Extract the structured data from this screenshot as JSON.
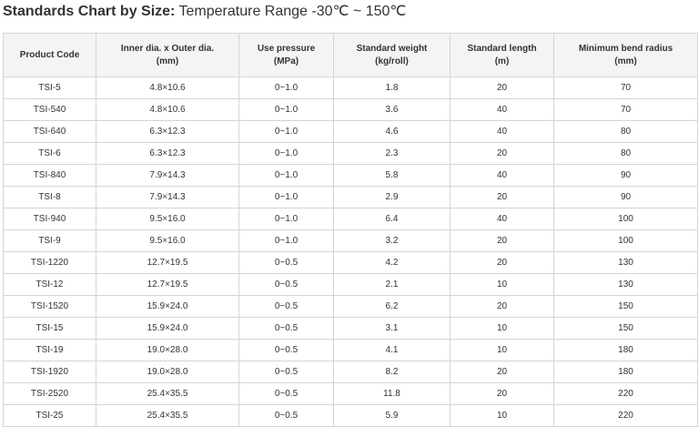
{
  "header": {
    "title_bold": "Standards Chart by Size:",
    "title_rest": "Temperature Range -30℃ ~ 150℃"
  },
  "table": {
    "columns": [
      [
        "Product Code"
      ],
      [
        "Inner dia. x Outer dia.",
        "(mm)"
      ],
      [
        "Use pressure",
        "(MPa)"
      ],
      [
        "Standard weight",
        "(kg/roll)"
      ],
      [
        "Standard length",
        "(m)"
      ],
      [
        "Minimum bend radius",
        "(mm)"
      ]
    ],
    "rows": [
      [
        "TSI-5",
        "4.8×10.6",
        "0~1.0",
        "1.8",
        "20",
        "70"
      ],
      [
        "TSI-540",
        "4.8×10.6",
        "0~1.0",
        "3.6",
        "40",
        "70"
      ],
      [
        "TSI-640",
        "6.3×12.3",
        "0~1.0",
        "4.6",
        "40",
        "80"
      ],
      [
        "TSI-6",
        "6.3×12.3",
        "0~1.0",
        "2.3",
        "20",
        "80"
      ],
      [
        "TSI-840",
        "7.9×14.3",
        "0~1.0",
        "5.8",
        "40",
        "90"
      ],
      [
        "TSI-8",
        "7.9×14.3",
        "0~1.0",
        "2.9",
        "20",
        "90"
      ],
      [
        "TSI-940",
        "9.5×16.0",
        "0~1.0",
        "6.4",
        "40",
        "100"
      ],
      [
        "TSI-9",
        "9.5×16.0",
        "0~1.0",
        "3.2",
        "20",
        "100"
      ],
      [
        "TSI-1220",
        "12.7×19.5",
        "0~0.5",
        "4.2",
        "20",
        "130"
      ],
      [
        "TSI-12",
        "12.7×19.5",
        "0~0.5",
        "2.1",
        "10",
        "130"
      ],
      [
        "TSI-1520",
        "15.9×24.0",
        "0~0.5",
        "6.2",
        "20",
        "150"
      ],
      [
        "TSI-15",
        "15.9×24.0",
        "0~0.5",
        "3.1",
        "10",
        "150"
      ],
      [
        "TSI-19",
        "19.0×28.0",
        "0~0.5",
        "4.1",
        "10",
        "180"
      ],
      [
        "TSI-1920",
        "19.0×28.0",
        "0~0.5",
        "8.2",
        "20",
        "180"
      ],
      [
        "TSI-2520",
        "25.4×35.5",
        "0~0.5",
        "11.8",
        "20",
        "220"
      ],
      [
        "TSI-25",
        "25.4×35.5",
        "0~0.5",
        "5.9",
        "10",
        "220"
      ]
    ]
  }
}
